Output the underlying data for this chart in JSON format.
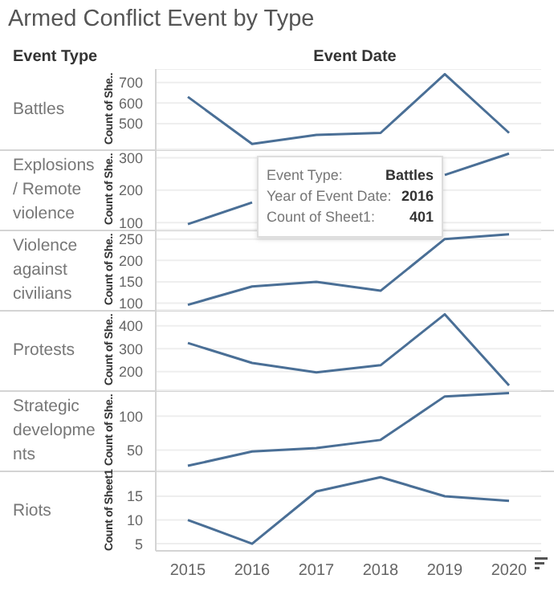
{
  "chart_data": [
    {
      "type": "line",
      "title": "Battles",
      "ylabel": "Count of She..",
      "categories": [
        "2015",
        "2016",
        "2017",
        "2018",
        "2019",
        "2020"
      ],
      "values": [
        630,
        401,
        445,
        455,
        740,
        455
      ],
      "color": "#4a6f96",
      "ylim": [
        375,
        765
      ],
      "yticks": [
        500,
        600,
        700
      ],
      "grid": "y",
      "tick_labels": "y",
      "annotations": [
        "Armed Conflict Event by Type",
        "Event Type",
        "Event Date",
        "Event Type:",
        "Battles",
        "Year of Event Date:",
        "2016",
        "Count of Sheet1:",
        "401"
      ]
    },
    {
      "type": "line",
      "title": "Explosions/ Remote violence",
      "ylabel": "Count of She..",
      "categories": [
        "2015",
        "2016",
        "2017",
        "2018",
        "2019",
        "2020"
      ],
      "values": [
        95,
        162,
        null,
        null,
        247,
        313
      ],
      "color": "#4a6f96",
      "ylim": [
        78,
        326
      ],
      "yticks": [
        100,
        200,
        300
      ],
      "grid": "y",
      "tick_labels": "y"
    },
    {
      "type": "line",
      "title": "Violence against civilians",
      "ylabel": "Count of She..",
      "categories": [
        "2015",
        "2016",
        "2017",
        "2018",
        "2019",
        "2020"
      ],
      "values": [
        96,
        139,
        150,
        129,
        250,
        261
      ],
      "color": "#4a6f96",
      "ylim": [
        84,
        272
      ],
      "yticks": [
        100,
        150,
        200,
        250
      ],
      "grid": "y",
      "tick_labels": "y"
    },
    {
      "type": "line",
      "title": "Protests",
      "ylabel": "Count of She..",
      "categories": [
        "2015",
        "2016",
        "2017",
        "2018",
        "2019",
        "2020"
      ],
      "values": [
        325,
        238,
        197,
        228,
        450,
        140
      ],
      "color": "#4a6f96",
      "ylim": [
        119,
        469
      ],
      "yticks": [
        200,
        300,
        400
      ],
      "grid": "y",
      "tick_labels": "y"
    },
    {
      "type": "line",
      "title": "Strategic developments",
      "ylabel": "Count of She..",
      "categories": [
        "2015",
        "2016",
        "2017",
        "2018",
        "2019",
        "2020"
      ],
      "values": [
        27,
        48,
        53,
        65,
        129,
        134
      ],
      "color": "#4a6f96",
      "ylim": [
        20,
        138
      ],
      "yticks": [
        50,
        100
      ],
      "grid": "y",
      "tick_labels": "y"
    },
    {
      "type": "line",
      "title": "Riots",
      "ylabel": "Count of Sheet1",
      "categories": [
        "2015",
        "2016",
        "2017",
        "2018",
        "2019",
        "2020"
      ],
      "values": [
        10,
        5,
        16,
        19,
        15,
        14
      ],
      "color": "#4a6f96",
      "ylim": [
        3.5,
        20.4
      ],
      "yticks": [
        5,
        10,
        15
      ],
      "grid": "y"
    }
  ]
}
